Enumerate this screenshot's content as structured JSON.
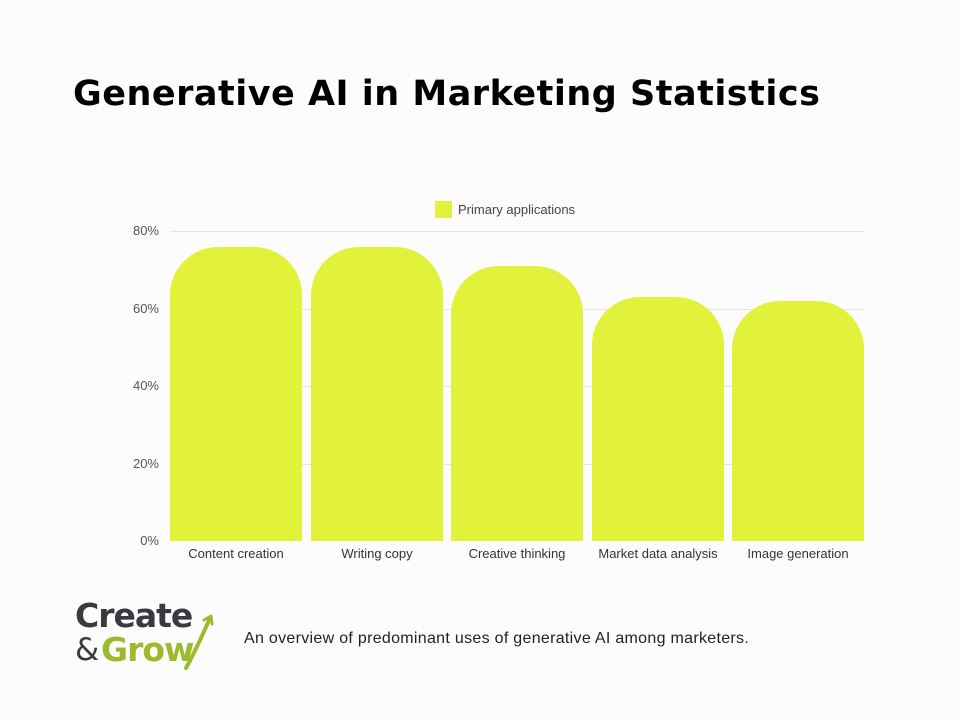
{
  "title": "Generative AI in Marketing Statistics",
  "caption": "An overview of predominant uses of generative AI among marketers.",
  "logo": {
    "line1": "Create",
    "amp": "&",
    "line2": "Grow",
    "dark_color": "#373a3e",
    "accent_color": "#9cbb2c"
  },
  "colors": {
    "bar": "#e2f23a",
    "grid": "#e4e4e4",
    "background": "#fcfcfc"
  },
  "chart_data": {
    "type": "bar",
    "title": "Generative AI in Marketing Statistics",
    "xlabel": "",
    "ylabel": "",
    "categories": [
      "Content creation",
      "Writing copy",
      "Creative thinking",
      "Market data analysis",
      "Image generation"
    ],
    "series": [
      {
        "name": "Primary applications",
        "values": [
          76,
          76,
          71,
          63,
          62
        ],
        "color": "#e2f23a"
      }
    ],
    "ylim": [
      0,
      80
    ],
    "yticks": [
      0,
      20,
      40,
      60,
      80
    ],
    "ytick_labels": [
      "0%",
      "20%",
      "40%",
      "60%",
      "80%"
    ],
    "grid": true,
    "legend_position": "top"
  }
}
